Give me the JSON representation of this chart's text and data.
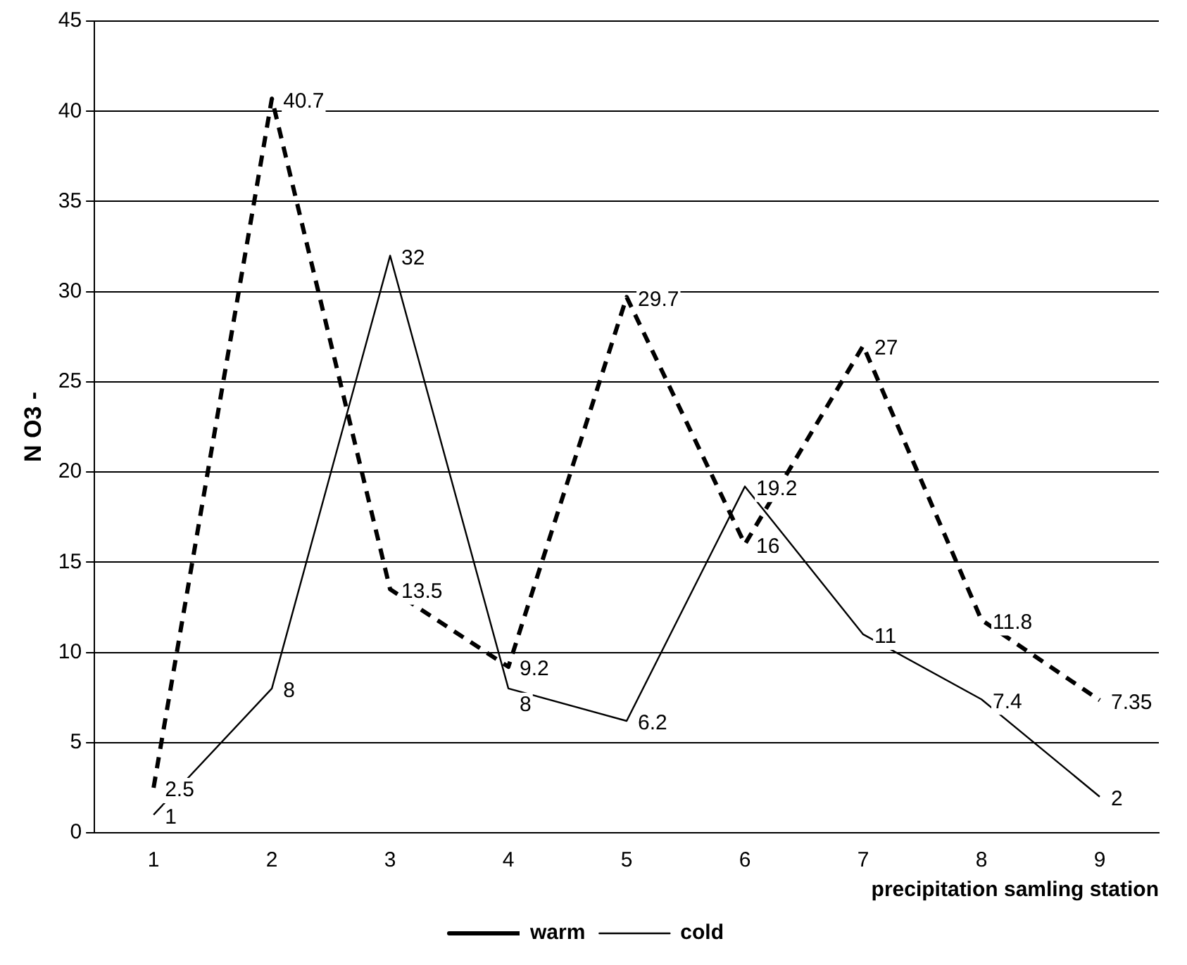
{
  "chart_data": {
    "type": "line",
    "xlabel": "precipitation samling station",
    "ylabel": "N O3 -",
    "categories": [
      "1",
      "2",
      "3",
      "4",
      "5",
      "6",
      "7",
      "8",
      "9"
    ],
    "series": [
      {
        "name": "warm",
        "color": "#000000",
        "line_style": "dashed",
        "values": [
          2.5,
          40.7,
          13.5,
          9.2,
          29.7,
          16,
          27,
          11.8,
          7.35
        ]
      },
      {
        "name": "cold",
        "color": "#000000",
        "line_style": "solid",
        "values": [
          1,
          8,
          32,
          8,
          6.2,
          19.2,
          11,
          7.4,
          2
        ]
      }
    ],
    "ylim": [
      0,
      45
    ],
    "yticks": [
      0,
      5,
      10,
      15,
      20,
      25,
      30,
      35,
      40,
      45
    ],
    "grid": "y",
    "legend": "bottom",
    "marker": "none",
    "data_labels": true
  }
}
